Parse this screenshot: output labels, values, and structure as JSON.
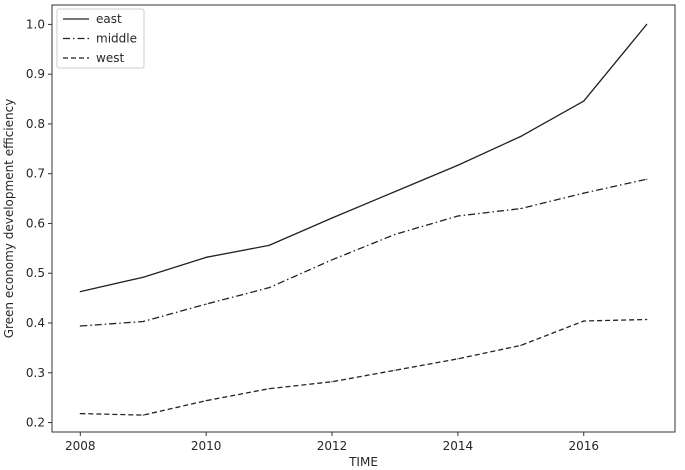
{
  "chart_data": {
    "type": "line",
    "title": "",
    "xlabel": "TIME",
    "ylabel": "Green economy development efficiency",
    "x": [
      2008,
      2009,
      2010,
      2011,
      2012,
      2013,
      2014,
      2015,
      2016,
      2017
    ],
    "xlim": [
      2007.55,
      2017.45
    ],
    "ylim": [
      0.181,
      1.039
    ],
    "x_ticks": [
      2008,
      2010,
      2012,
      2014,
      2016
    ],
    "y_ticks": [
      0.2,
      0.3,
      0.4,
      0.5,
      0.6,
      0.7,
      0.8,
      0.9,
      1.0
    ],
    "x_tick_labels": [
      "2008",
      "2010",
      "2012",
      "2014",
      "2016"
    ],
    "y_tick_labels": [
      "0.2",
      "0.3",
      "0.4",
      "0.5",
      "0.6",
      "0.7",
      "0.8",
      "0.9",
      "1.0"
    ],
    "grid": false,
    "legend_position": "top-left",
    "series": [
      {
        "name": "east",
        "line_style": "solid",
        "color": "#222222",
        "values": [
          0.463,
          0.492,
          0.532,
          0.556,
          0.611,
          0.664,
          0.717,
          0.775,
          0.846,
          1.0
        ]
      },
      {
        "name": "middle",
        "line_style": "dashdot",
        "color": "#222222",
        "values": [
          0.394,
          0.403,
          0.438,
          0.471,
          0.527,
          0.578,
          0.615,
          0.63,
          0.661,
          0.689
        ]
      },
      {
        "name": "west",
        "line_style": "dashed",
        "color": "#222222",
        "values": [
          0.218,
          0.215,
          0.244,
          0.268,
          0.282,
          0.305,
          0.328,
          0.355,
          0.404,
          0.407
        ]
      }
    ]
  }
}
